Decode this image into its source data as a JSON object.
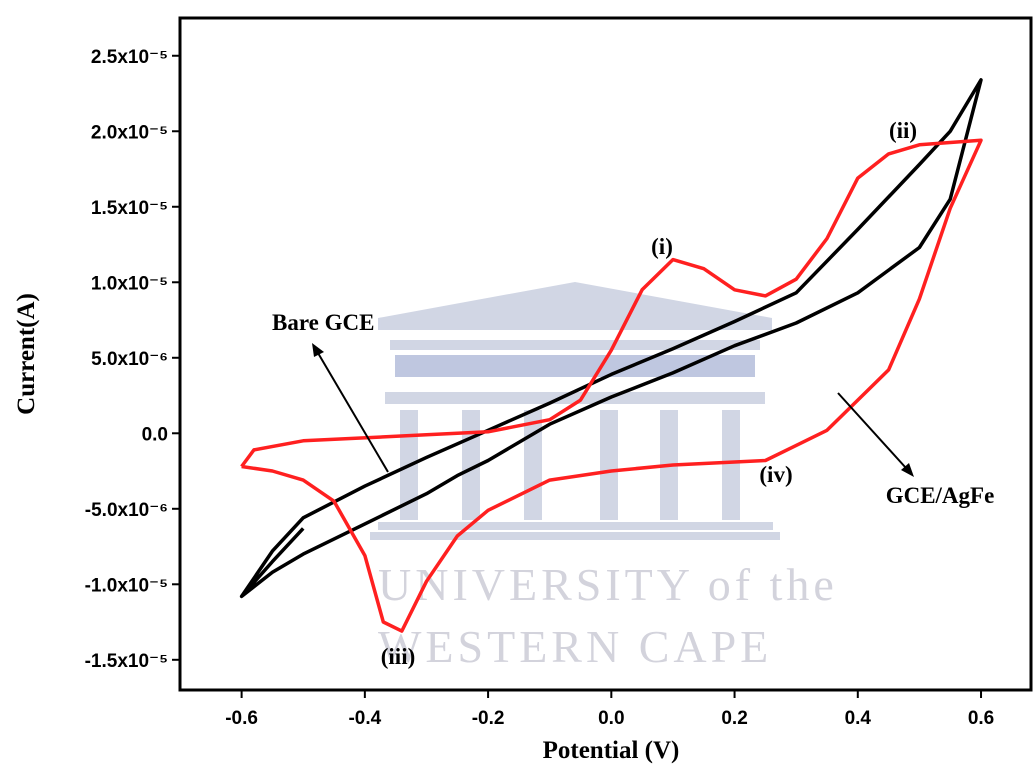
{
  "chart_data": {
    "type": "line",
    "x_label": "Potential (V)",
    "y_label": "Current(A)",
    "xlim": [
      -0.7,
      0.66
    ],
    "ylim": [
      -1.7e-05,
      2.75e-05
    ],
    "xticks": [
      -0.6,
      -0.4,
      -0.2,
      {
        "value": 0,
        "label": "0.0"
      },
      0.2,
      0.4,
      0.6
    ],
    "yticks": [
      {
        "value": 2.5e-05,
        "label": "2.5x10⁻⁵"
      },
      {
        "value": 2e-05,
        "label": "2.0x10⁻⁵"
      },
      {
        "value": 1.5e-05,
        "label": "1.5x10⁻⁵"
      },
      {
        "value": 1e-05,
        "label": "1.0x10⁻⁵"
      },
      {
        "value": 5e-06,
        "label": "5.0x10⁻⁶"
      },
      {
        "value": 0,
        "label": "0.0"
      },
      {
        "value": -5e-06,
        "label": "-5.0x10⁻⁶"
      },
      {
        "value": -1e-05,
        "label": "-1.0x10⁻⁵"
      },
      {
        "value": -1.5e-05,
        "label": "-1.5x10⁻⁵"
      }
    ],
    "series": [
      {
        "name": "Bare GCE",
        "color": "#000000",
        "x": [
          -0.5,
          -0.55,
          -0.6,
          -0.55,
          -0.5,
          -0.4,
          -0.3,
          -0.2,
          -0.1,
          0,
          0.1,
          0.2,
          0.3,
          0.4,
          0.5,
          0.55,
          0.6,
          0.55,
          0.5,
          0.4,
          0.3,
          0.2,
          0.1,
          0,
          -0.1,
          -0.2,
          -0.25,
          -0.3,
          -0.4,
          -0.5,
          -0.55,
          -0.6
        ],
        "values": [
          -6.3e-06,
          -8.5e-06,
          -1.08e-05,
          -7.8e-06,
          -5.6e-06,
          -3.5e-06,
          -1.6e-06,
          2e-07,
          2e-06,
          3.9e-06,
          5.6e-06,
          7.4e-06,
          9.3e-06,
          1.35e-05,
          1.78e-05,
          2e-05,
          2.34e-05,
          1.55e-05,
          1.23e-05,
          9.3e-06,
          7.3e-06,
          5.8e-06,
          4e-06,
          2.4e-06,
          6e-07,
          -1.8e-06,
          -2.8e-06,
          -4e-06,
          -6e-06,
          -8e-06,
          -9.2e-06,
          -1.08e-05
        ]
      },
      {
        "name": "GCE/AgFe",
        "color": "#ff2020",
        "x": [
          -0.6,
          -0.58,
          -0.5,
          -0.3,
          -0.2,
          -0.1,
          -0.05,
          0,
          0.05,
          0.1,
          0.15,
          0.2,
          0.25,
          0.3,
          0.35,
          0.4,
          0.45,
          0.5,
          0.6,
          0.55,
          0.5,
          0.45,
          0.4,
          0.35,
          0.3,
          0.25,
          0.2,
          0.1,
          0,
          -0.1,
          -0.2,
          -0.25,
          -0.3,
          -0.34,
          -0.37,
          -0.4,
          -0.45,
          -0.5,
          -0.55,
          -0.6
        ],
        "values": [
          -2.2e-06,
          -1.1e-06,
          -5e-07,
          -1e-07,
          1e-07,
          9e-07,
          2.2e-06,
          5.5e-06,
          9.5e-06,
          1.15e-05,
          1.09e-05,
          9.5e-06,
          9.1e-06,
          1.02e-05,
          1.29e-05,
          1.69e-05,
          1.85e-05,
          1.91e-05,
          1.94e-05,
          1.49e-05,
          8.9e-06,
          4.2e-06,
          2.2e-06,
          2e-07,
          -8e-07,
          -1.8e-06,
          -1.9e-06,
          -2.1e-06,
          -2.5e-06,
          -3.1e-06,
          -5.1e-06,
          -6.8e-06,
          -9.8e-06,
          -1.31e-05,
          -1.25e-05,
          -8.1e-06,
          -4.5e-06,
          -3.1e-06,
          -2.5e-06,
          -2.2e-06
        ]
      }
    ],
    "annotations": [
      "(i)",
      "(ii)",
      "(iii)",
      "(iv)"
    ],
    "watermark": [
      "UNIVERSITY of the",
      "WESTERN CAPE"
    ]
  }
}
